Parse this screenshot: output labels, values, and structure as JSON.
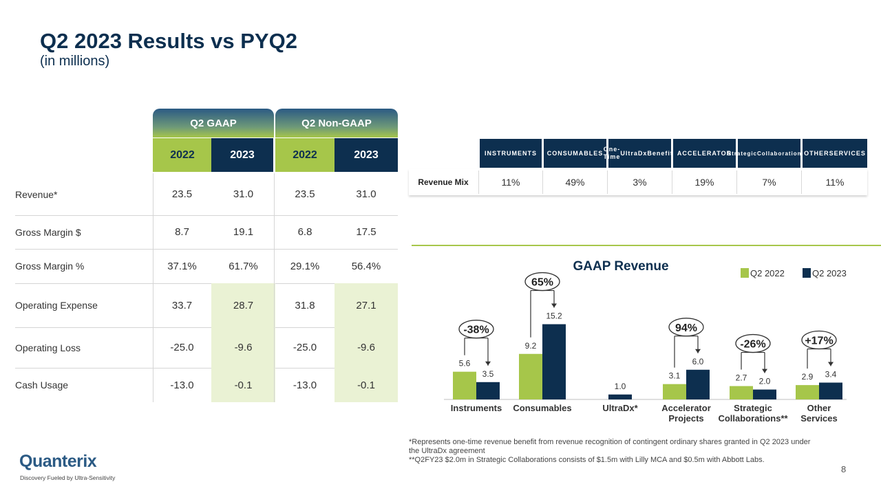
{
  "slide": {
    "title": "Q2 2023 Results vs PYQ2",
    "subtitle": "(in millions)",
    "page_number": "8"
  },
  "results_table": {
    "group_headers": [
      "Q2 GAAP",
      "Q2 Non-GAAP"
    ],
    "years": [
      "2022",
      "2023",
      "2022",
      "2023"
    ],
    "rows": [
      {
        "label": "Revenue*",
        "values": [
          "23.5",
          "31.0",
          "23.5",
          "31.0"
        ]
      },
      {
        "label": "Gross Margin $",
        "values": [
          "8.7",
          "19.1",
          "6.8",
          "17.5"
        ]
      },
      {
        "label": "Gross Margin %",
        "values": [
          "37.1%",
          "61.7%",
          "29.1%",
          "56.4%"
        ]
      },
      {
        "label": "Operating Expense",
        "values": [
          "33.7",
          "28.7",
          "31.8",
          "27.1"
        ]
      },
      {
        "label": "Operating Loss",
        "values": [
          "-25.0",
          "-9.6",
          "-25.0",
          "-9.6"
        ]
      },
      {
        "label": "Cash Usage",
        "values": [
          "-13.0",
          "-0.1",
          "-13.0",
          "-0.1"
        ]
      }
    ]
  },
  "revenue_mix": {
    "row_label": "Revenue Mix",
    "headers": [
      [
        "INSTRUMENTS"
      ],
      [
        "CONSUMABLES"
      ],
      [
        "One-Time",
        "UltraDx",
        "Benefit*"
      ],
      [
        "ACCELERATOR"
      ],
      [
        "Strategic",
        "Collaborations**"
      ],
      [
        "OTHER",
        "SERVICES"
      ]
    ],
    "values": [
      "11%",
      "49%",
      "3%",
      "19%",
      "7%",
      "11%"
    ]
  },
  "chart_data": {
    "type": "bar",
    "title": "GAAP Revenue",
    "legend_position": "top-right",
    "categories": [
      [
        "Instruments"
      ],
      [
        "Consumables"
      ],
      [
        "UltraDx*"
      ],
      [
        "Accelerator",
        "Projects"
      ],
      [
        "Strategic",
        "Collaborations**"
      ],
      [
        "Other",
        "Services"
      ]
    ],
    "series": [
      {
        "name": "Q2 2022",
        "color": "#a6c64a",
        "values": [
          5.6,
          9.2,
          null,
          3.1,
          2.7,
          2.9
        ]
      },
      {
        "name": "Q2 2023",
        "color": "#0d2f4f",
        "values": [
          3.5,
          15.2,
          1.0,
          6.0,
          2.0,
          3.4
        ]
      }
    ],
    "annotations": [
      {
        "category_index": 0,
        "text": "-38%"
      },
      {
        "category_index": 1,
        "text": "65%"
      },
      {
        "category_index": 3,
        "text": "94%"
      },
      {
        "category_index": 4,
        "text": "-26%"
      },
      {
        "category_index": 5,
        "text": "+17%"
      }
    ],
    "grid": false
  },
  "footnotes": {
    "line1": "*Represents one-time revenue benefit from revenue recognition of contingent ordinary shares granted in Q2 2023 under the UltraDx agreement",
    "line2": "**Q2FY23 $2.0m in Strategic Collaborations consists of $1.5m with Lilly MCA and $0.5m with Abbott Labs."
  },
  "branding": {
    "logo_text": "Quanterix",
    "tagline": "Discovery Fueled by Ultra-Sensitivity"
  }
}
